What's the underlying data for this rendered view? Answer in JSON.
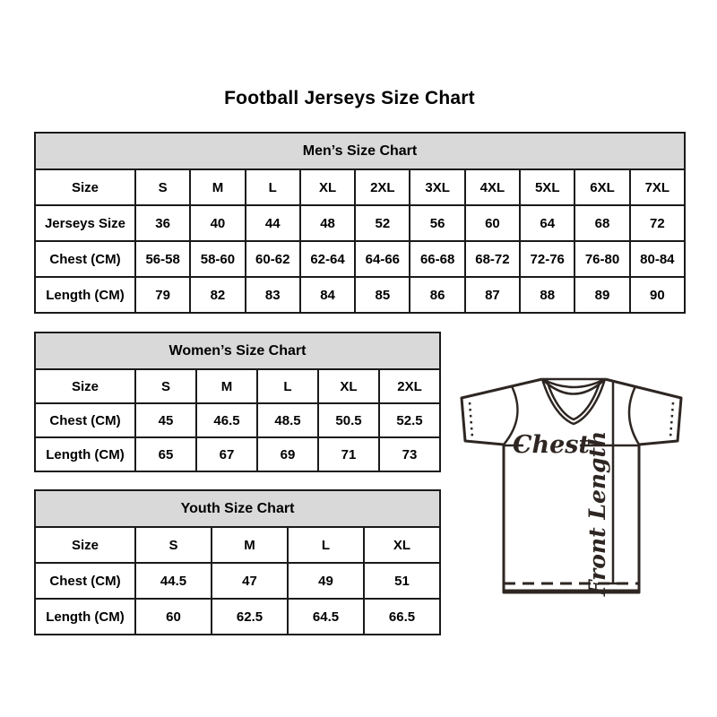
{
  "page": {
    "title": "Football Jerseys Size Chart"
  },
  "tables": {
    "men": {
      "title": "Men’s Size Chart",
      "rows": [
        [
          "Size",
          "S",
          "M",
          "L",
          "XL",
          "2XL",
          "3XL",
          "4XL",
          "5XL",
          "6XL",
          "7XL"
        ],
        [
          "Jerseys Size",
          "36",
          "40",
          "44",
          "48",
          "52",
          "56",
          "60",
          "64",
          "68",
          "72"
        ],
        [
          "Chest (CM)",
          "56-58",
          "58-60",
          "60-62",
          "62-64",
          "64-66",
          "66-68",
          "68-72",
          "72-76",
          "76-80",
          "80-84"
        ],
        [
          "Length (CM)",
          "79",
          "82",
          "83",
          "84",
          "85",
          "86",
          "87",
          "88",
          "89",
          "90"
        ]
      ]
    },
    "women": {
      "title": "Women’s Size Chart",
      "rows": [
        [
          "Size",
          "S",
          "M",
          "L",
          "XL",
          "2XL"
        ],
        [
          "Chest (CM)",
          "45",
          "46.5",
          "48.5",
          "50.5",
          "52.5"
        ],
        [
          "Length (CM)",
          "65",
          "67",
          "69",
          "71",
          "73"
        ]
      ]
    },
    "youth": {
      "title": "Youth Size Chart",
      "rows": [
        [
          "Size",
          "S",
          "M",
          "L",
          "XL"
        ],
        [
          "Chest (CM)",
          "44.5",
          "47",
          "49",
          "51"
        ],
        [
          "Length (CM)",
          "60",
          "62.5",
          "64.5",
          "66.5"
        ]
      ]
    }
  },
  "diagram": {
    "chest_label": "Chest",
    "front_length_label": "Front Length"
  },
  "colors": {
    "table_header_bg": "#d9d9d9",
    "table_border": "#1a1a1a",
    "text": "#000000",
    "diagram_line": "#2e2622"
  }
}
